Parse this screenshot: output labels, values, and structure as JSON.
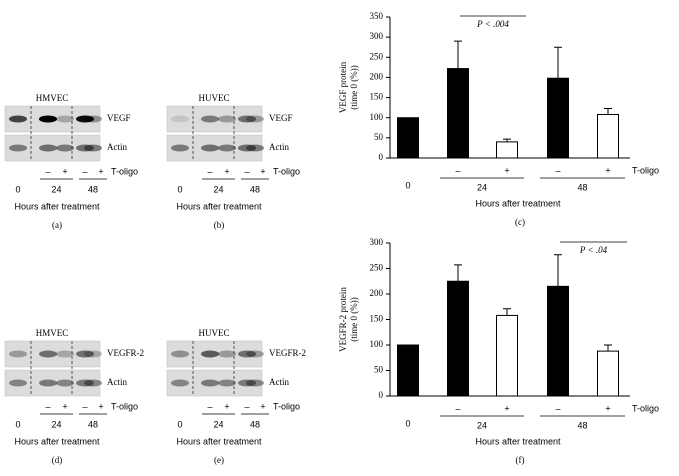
{
  "blots": [
    {
      "panel": "(a)",
      "cell_line": "HMVEC",
      "rows": [
        "VEGF",
        "Actin"
      ],
      "lanes": [
        "0",
        "–",
        "+",
        "–",
        "+"
      ],
      "groups": [
        "24",
        "48"
      ],
      "row_label": "T-oligo",
      "xlabel": "Hours after treatment"
    },
    {
      "panel": "(b)",
      "cell_line": "HUVEC",
      "rows": [
        "VEGF",
        "Actin"
      ],
      "lanes": [
        "0",
        "–",
        "+",
        "–",
        "+"
      ],
      "groups": [
        "24",
        "48"
      ],
      "row_label": "T-oligo",
      "xlabel": "Hours after treatment"
    },
    {
      "panel": "(d)",
      "cell_line": "HMVEC",
      "rows": [
        "VEGFR-2",
        "Actin"
      ],
      "lanes": [
        "0",
        "–",
        "+",
        "–",
        "+"
      ],
      "groups": [
        "24",
        "48"
      ],
      "row_label": "T-oligo",
      "xlabel": "Hours after treatment"
    },
    {
      "panel": "(e)",
      "cell_line": "HUVEC",
      "rows": [
        "VEGFR-2",
        "Actin"
      ],
      "lanes": [
        "0",
        "–",
        "+",
        "–",
        "+"
      ],
      "groups": [
        "24",
        "48"
      ],
      "row_label": "T-oligo",
      "xlabel": "Hours after treatment"
    }
  ],
  "chart_data": [
    {
      "type": "bar",
      "panel": "(c)",
      "ylabel": [
        "VEGF protein",
        "(time 0 (%))"
      ],
      "ylim": [
        0,
        350
      ],
      "yticks": [
        0,
        50,
        100,
        150,
        200,
        250,
        300,
        350
      ],
      "categories": [
        "0",
        "–",
        "+",
        "–",
        "+"
      ],
      "values": [
        100,
        222,
        40,
        198,
        108
      ],
      "errors": [
        null,
        68,
        7,
        77,
        15
      ],
      "colors": [
        "#000000",
        "#000000",
        "#ffffff",
        "#000000",
        "#ffffff"
      ],
      "groups": [
        {
          "label": "24",
          "members": [
            1,
            2
          ]
        },
        {
          "label": "48",
          "members": [
            3,
            4
          ]
        }
      ],
      "row_label": "T-oligo",
      "xlabel": "Hours after treatment",
      "annotation": {
        "text": "P < .004",
        "members": [
          1,
          2
        ]
      }
    },
    {
      "type": "bar",
      "panel": "(f)",
      "ylabel": [
        "VEGFR-2 protein",
        "(time 0 (%))"
      ],
      "ylim": [
        0,
        300
      ],
      "yticks": [
        0,
        50,
        100,
        150,
        200,
        250,
        300
      ],
      "categories": [
        "0",
        "–",
        "+",
        "–",
        "+"
      ],
      "values": [
        100,
        225,
        158,
        215,
        88
      ],
      "errors": [
        null,
        32,
        13,
        62,
        12
      ],
      "colors": [
        "#000000",
        "#000000",
        "#ffffff",
        "#000000",
        "#ffffff"
      ],
      "groups": [
        {
          "label": "24",
          "members": [
            1,
            2
          ]
        },
        {
          "label": "48",
          "members": [
            3,
            4
          ]
        }
      ],
      "row_label": "T-oligo",
      "xlabel": "Hours after treatment",
      "annotation": {
        "text": "P < .04",
        "members": [
          3,
          4
        ]
      }
    }
  ]
}
